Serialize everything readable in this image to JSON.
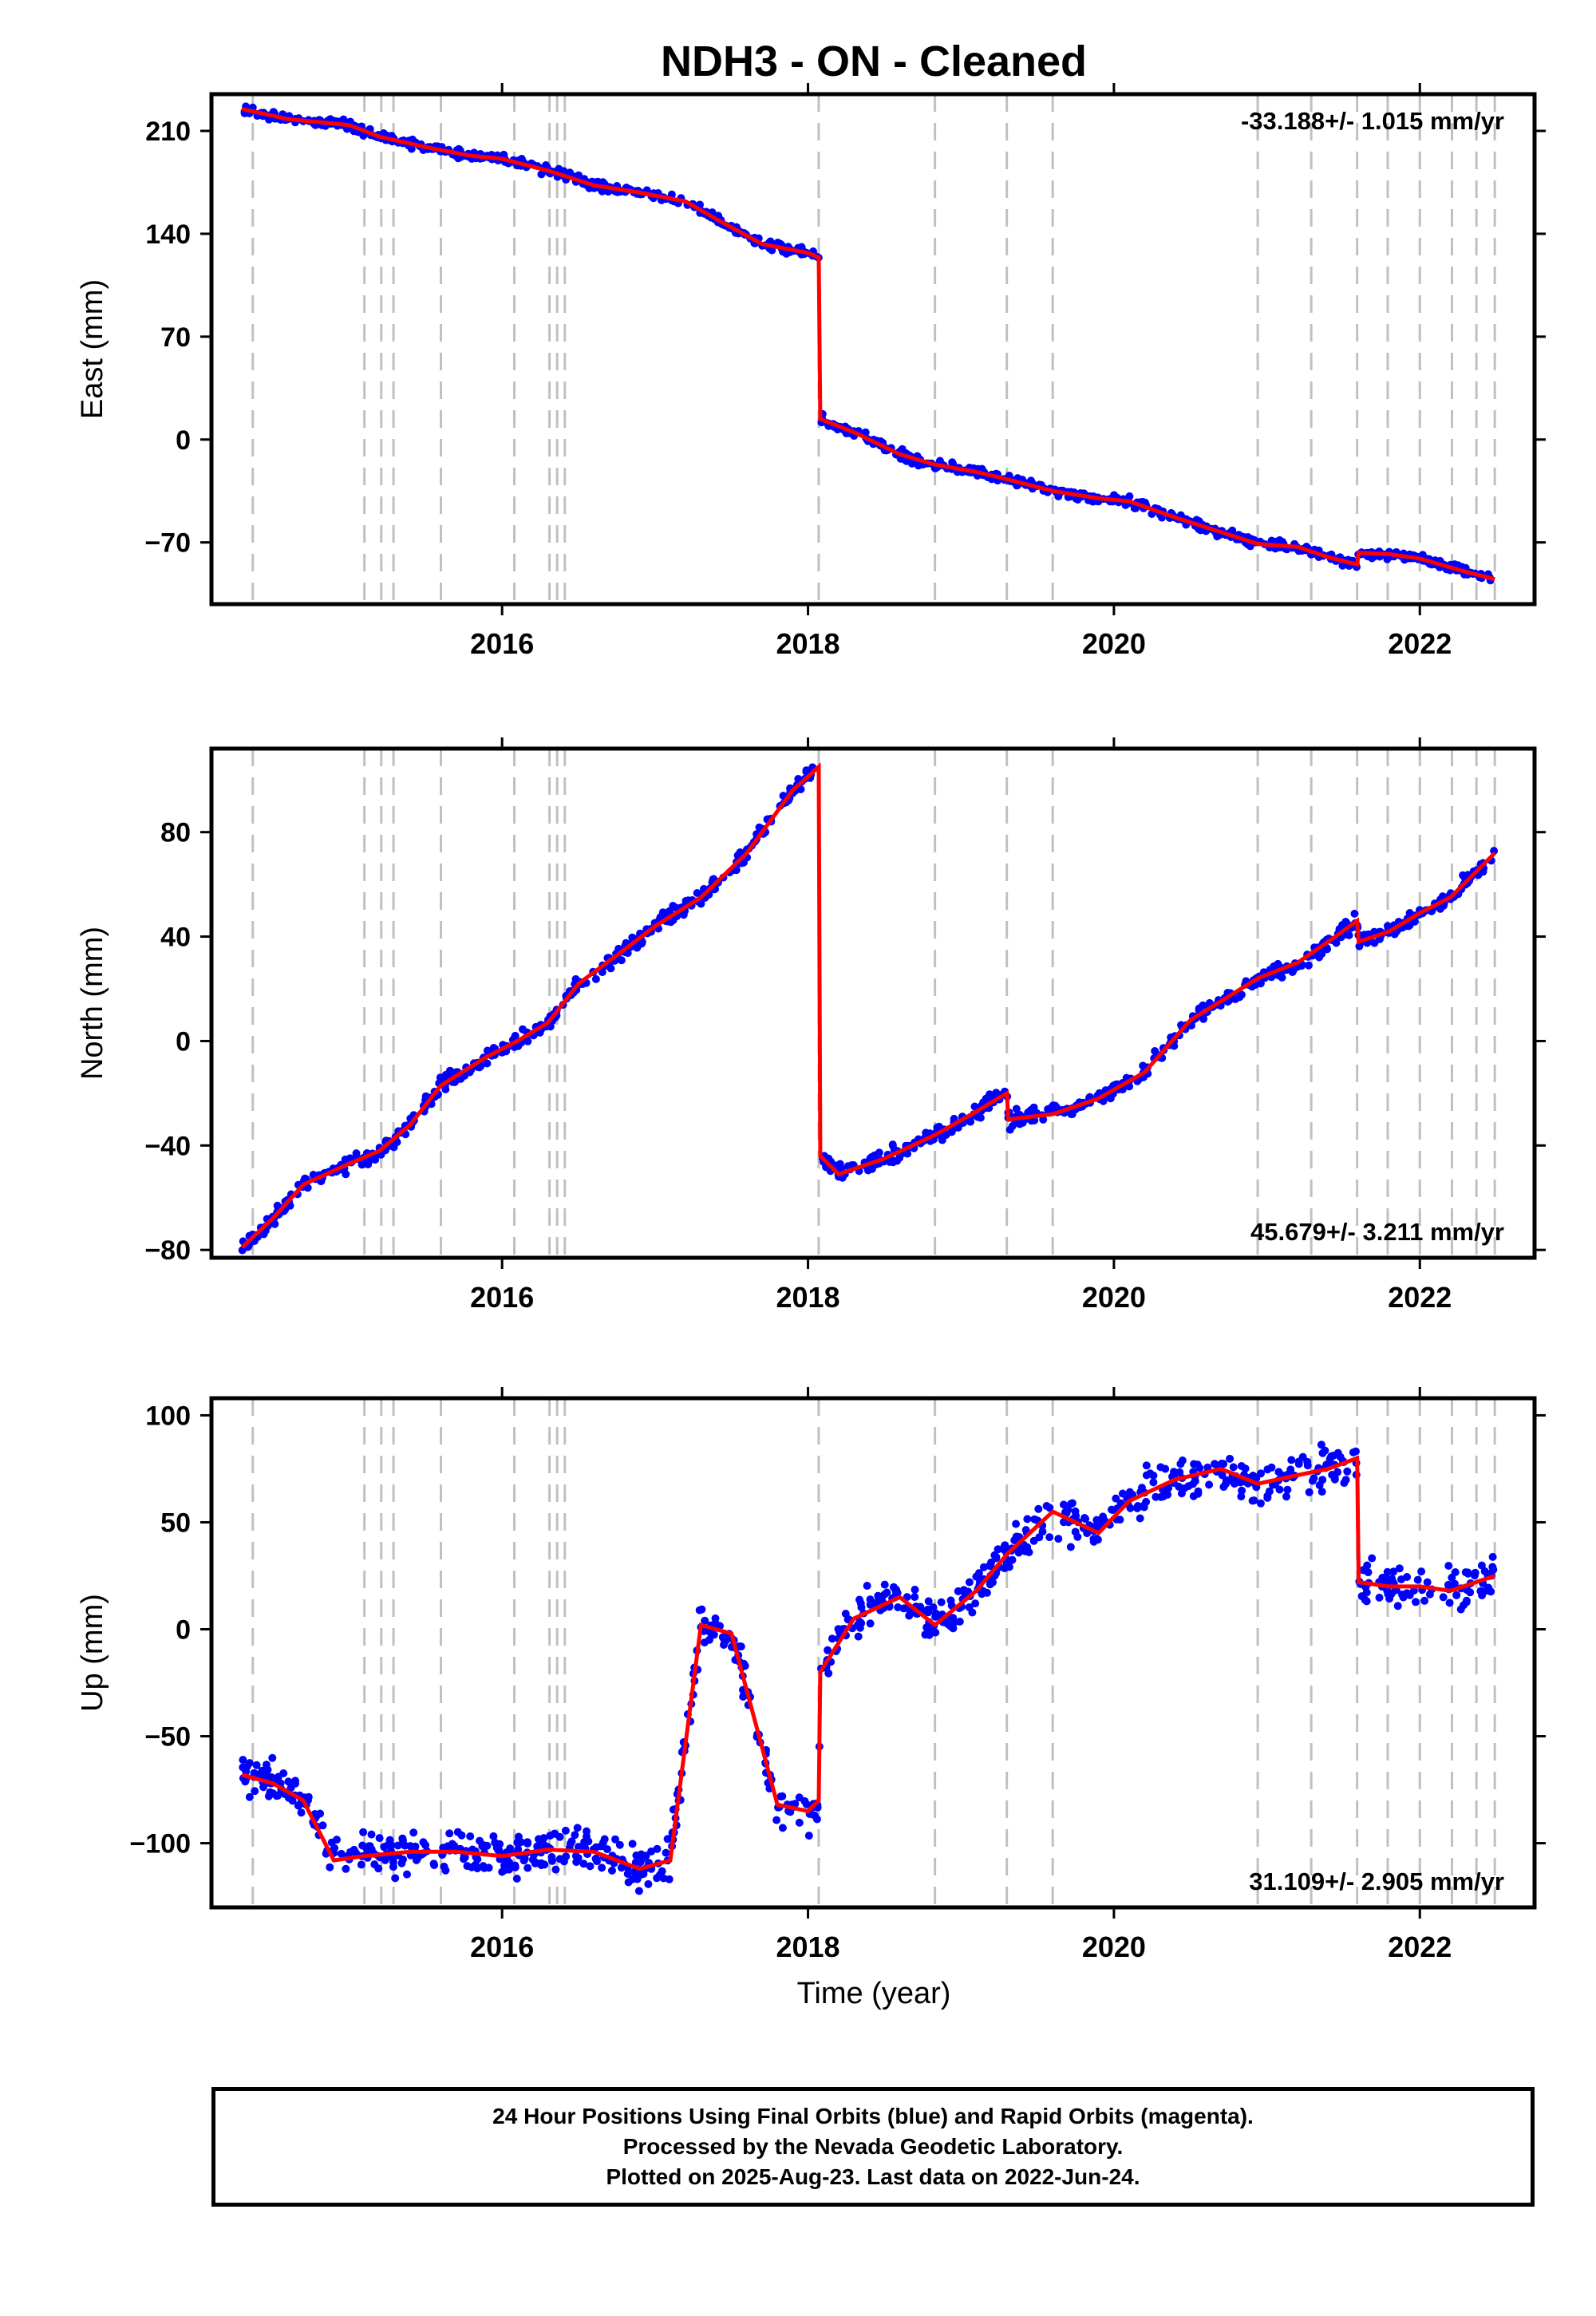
{
  "title": "NDH3  - ON - Cleaned",
  "colors": {
    "data_points": "#0000ff",
    "model_line": "#ff0000",
    "event_lines": "#c0c0c0",
    "frame": "#000000"
  },
  "x_axis": {
    "label": "Time (year)",
    "range": [
      2014.1,
      2022.75
    ],
    "ticks": [
      2016,
      2018,
      2020,
      2022
    ],
    "tick_labels": [
      "2016",
      "2018",
      "2020",
      "2022"
    ]
  },
  "event_years": [
    2014.37,
    2015.1,
    2015.21,
    2015.29,
    2015.6,
    2016.08,
    2016.31,
    2016.36,
    2016.41,
    2018.07,
    2018.83,
    2019.3,
    2019.6,
    2020.94,
    2021.29,
    2021.59,
    2021.79,
    2022.0,
    2022.21,
    2022.37,
    2022.49
  ],
  "chart_data": [
    {
      "type": "scatter",
      "component": "east",
      "ylabel": "East (mm)",
      "ylim": [
        -112,
        235
      ],
      "ytick_labels": [
        "210",
        "140",
        "70",
        "0",
        "−70"
      ],
      "yticks": [
        210,
        140,
        70,
        0,
        -70
      ],
      "rate_label": "-33.188+/- 1.015 mm/yr",
      "rate_position": "top-right",
      "series": [
        {
          "x": [
            2014.3,
            2014.6,
            2014.8,
            2015.0,
            2015.2,
            2015.5,
            2015.8,
            2016.0,
            2016.3,
            2016.6,
            2016.9,
            2017.2,
            2017.4,
            2017.7,
            2018.0,
            2018.07,
            2018.08,
            2018.3,
            2018.6,
            2018.83,
            2019.1,
            2019.3,
            2019.6,
            2019.9,
            2020.1,
            2020.4,
            2020.7,
            2020.94,
            2021.2,
            2021.4,
            2021.59,
            2021.6,
            2021.8,
            2022.0,
            2022.3,
            2022.49
          ],
          "y": [
            225,
            218,
            216,
            214,
            206,
            199,
            193,
            191,
            183,
            173,
            168,
            162,
            150,
            133,
            127,
            124,
            14,
            5,
            -10,
            -17,
            -22,
            -27,
            -35,
            -40,
            -42,
            -53,
            -63,
            -71,
            -73,
            -80,
            -85,
            -77,
            -78,
            -81,
            -90,
            -95
          ]
        }
      ]
    },
    {
      "type": "scatter",
      "component": "north",
      "ylabel": "North (mm)",
      "ylim": [
        -83,
        112
      ],
      "ytick_labels": [
        "80",
        "40",
        "0",
        "−40",
        "−80"
      ],
      "yticks": [
        80,
        40,
        0,
        -40,
        -80
      ],
      "rate_label": "45.679+/- 3.211 mm/yr",
      "rate_position": "bottom-right",
      "series": [
        {
          "x": [
            2014.3,
            2014.5,
            2014.7,
            2015.0,
            2015.2,
            2015.4,
            2015.6,
            2015.9,
            2016.1,
            2016.3,
            2016.5,
            2016.8,
            2017.0,
            2017.3,
            2017.6,
            2017.9,
            2018.07,
            2018.08,
            2018.2,
            2018.5,
            2018.83,
            2019.1,
            2019.3,
            2019.31,
            2019.6,
            2019.9,
            2020.2,
            2020.5,
            2020.94,
            2021.2,
            2021.4,
            2021.59,
            2021.6,
            2021.8,
            2022.0,
            2022.2,
            2022.49
          ],
          "y": [
            -79,
            -68,
            -55,
            -47,
            -42,
            -32,
            -17,
            -6,
            0,
            7,
            22,
            35,
            44,
            55,
            72,
            96,
            105,
            -44,
            -51,
            -45,
            -36,
            -27,
            -20,
            -30,
            -28,
            -22,
            -12,
            8,
            24,
            30,
            38,
            46,
            38,
            42,
            49,
            55,
            72
          ]
        }
      ]
    },
    {
      "type": "scatter",
      "component": "up",
      "ylabel": "Up (mm)",
      "ylim": [
        -130,
        108
      ],
      "ytick_labels": [
        "100",
        "50",
        "0",
        "−50",
        "−100"
      ],
      "yticks": [
        100,
        50,
        0,
        -50,
        -100
      ],
      "rate_label": "31.109+/- 2.905 mm/yr",
      "rate_position": "bottom-right",
      "series": [
        {
          "x": [
            2014.3,
            2014.5,
            2014.7,
            2014.9,
            2015.1,
            2015.4,
            2015.7,
            2016.0,
            2016.3,
            2016.6,
            2016.9,
            2017.1,
            2017.3,
            2017.5,
            2017.8,
            2018.0,
            2018.07,
            2018.08,
            2018.3,
            2018.6,
            2018.83,
            2019.1,
            2019.3,
            2019.6,
            2019.9,
            2020.1,
            2020.4,
            2020.7,
            2020.94,
            2021.2,
            2021.4,
            2021.59,
            2021.6,
            2021.8,
            2022.0,
            2022.2,
            2022.49
          ],
          "y": [
            -68,
            -72,
            -80,
            -108,
            -106,
            -104,
            -104,
            -106,
            -103,
            -104,
            -112,
            -108,
            2,
            -2,
            -82,
            -85,
            -80,
            -20,
            5,
            15,
            2,
            18,
            35,
            55,
            45,
            60,
            70,
            75,
            68,
            72,
            75,
            80,
            22,
            20,
            20,
            18,
            25
          ]
        }
      ]
    }
  ],
  "footer": {
    "line1": "24 Hour Positions Using Final Orbits (blue) and Rapid Orbits (magenta).",
    "line2": "Processed by the Nevada Geodetic Laboratory.",
    "line3": "Plotted on 2025-Aug-23. Last data on 2022-Jun-24."
  }
}
